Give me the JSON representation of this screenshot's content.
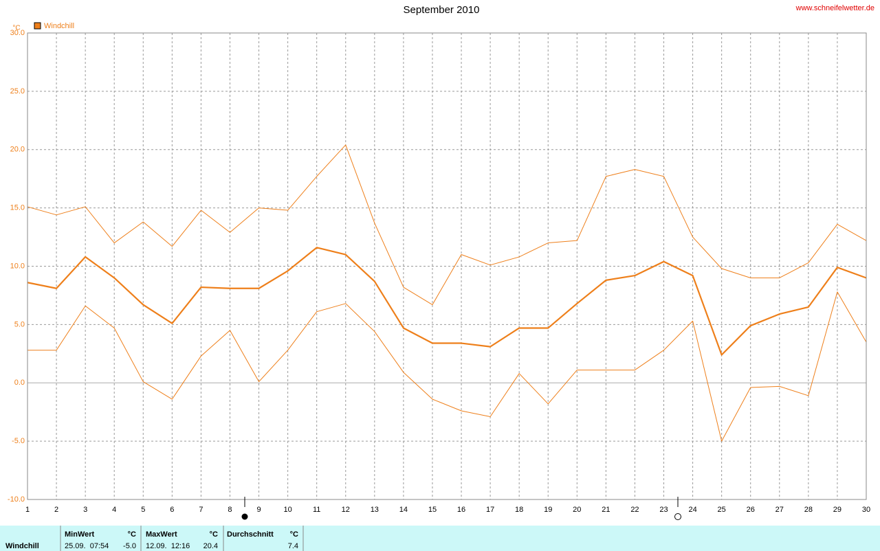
{
  "chart_data": {
    "type": "line",
    "title": "September 2010",
    "source": "www.schneifelwetter.de",
    "y_unit": "°C",
    "legend": {
      "label": "Windchill",
      "color": "#ee7f1a"
    },
    "x": [
      1,
      2,
      3,
      4,
      5,
      6,
      7,
      8,
      9,
      10,
      11,
      12,
      13,
      14,
      15,
      16,
      17,
      18,
      19,
      20,
      21,
      22,
      23,
      24,
      25,
      26,
      27,
      28,
      29,
      30
    ],
    "series": [
      {
        "color": "#ee7f1a",
        "line_width": 1,
        "values": [
          15.1,
          14.4,
          15.1,
          12.0,
          13.8,
          11.7,
          14.8,
          12.9,
          15.0,
          14.8,
          17.7,
          20.4,
          13.7,
          8.2,
          6.7,
          11.0,
          10.1,
          10.8,
          12.0,
          12.2,
          17.7,
          18.3,
          17.7,
          12.5,
          9.8,
          9.0,
          9.0,
          10.3,
          13.6,
          12.2
        ]
      },
      {
        "color": "#ee7f1a",
        "line_width": 2.2,
        "values": [
          8.6,
          8.1,
          10.8,
          9.0,
          6.7,
          5.1,
          8.2,
          8.1,
          8.1,
          9.6,
          11.6,
          11.0,
          8.7,
          4.7,
          3.4,
          3.4,
          3.1,
          4.7,
          4.7,
          6.8,
          8.8,
          9.2,
          10.4,
          9.2,
          2.4,
          4.9,
          5.9,
          6.5,
          9.9,
          9.0
        ]
      },
      {
        "color": "#ee7f1a",
        "line_width": 1,
        "values": [
          2.8,
          2.8,
          6.6,
          4.7,
          0.1,
          -1.4,
          2.3,
          4.5,
          0.1,
          2.8,
          6.1,
          6.8,
          4.4,
          0.9,
          -1.4,
          -2.4,
          -2.9,
          0.8,
          -1.8,
          1.1,
          1.1,
          1.1,
          2.8,
          5.3,
          -5.0,
          -0.4,
          -0.3,
          -1.1,
          7.8,
          3.5
        ]
      }
    ],
    "xlim": [
      1,
      30
    ],
    "xticks": [
      1,
      2,
      3,
      4,
      5,
      6,
      7,
      8,
      9,
      10,
      11,
      12,
      13,
      14,
      15,
      16,
      17,
      18,
      19,
      20,
      21,
      22,
      23,
      24,
      25,
      26,
      27,
      28,
      29,
      30
    ],
    "ylim": [
      -10,
      30
    ],
    "yticks": [
      {
        "value": 30,
        "label": "30.0"
      },
      {
        "value": 25,
        "label": "25.0"
      },
      {
        "value": 20,
        "label": "20.0"
      },
      {
        "value": 15,
        "label": "15.0"
      },
      {
        "value": 10,
        "label": "10.0"
      },
      {
        "value": 5,
        "label": "5.0"
      },
      {
        "value": 0,
        "label": "0.0"
      },
      {
        "value": -5,
        "label": "-5.0"
      },
      {
        "value": -10,
        "label": "-10.0"
      }
    ],
    "grid": true
  },
  "summary_table": {
    "row_label": "Windchill",
    "headers": [
      "MinWert",
      "°C",
      "MaxWert",
      "°C",
      "Durchschnitt",
      "°C"
    ],
    "values": [
      "25.09.  07:54",
      "-5.0",
      "12.09.  12:16",
      "20.4",
      "",
      "7.4"
    ]
  }
}
